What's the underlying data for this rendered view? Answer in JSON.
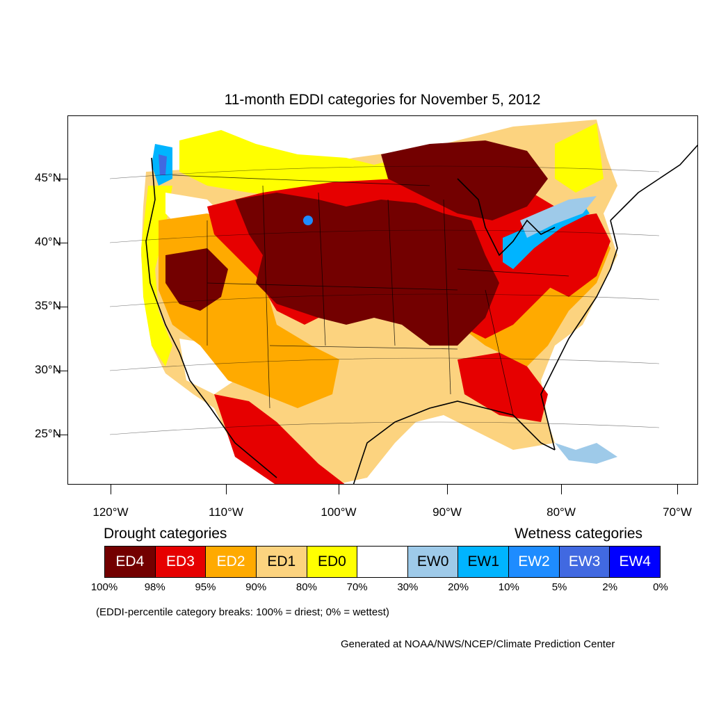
{
  "title": "11-month EDDI categories for November 5, 2012",
  "lat_labels": [
    "45°N",
    "40°N",
    "35°N",
    "30°N",
    "25°N"
  ],
  "lon_labels": [
    "120°W",
    "110°W",
    "100°W",
    "90°W",
    "80°W",
    "70°W"
  ],
  "legend": {
    "drought_heading": "Drought categories",
    "wetness_heading": "Wetness categories",
    "categories": [
      {
        "label": "ED4",
        "color": "#730000",
        "text_color": "#ffffff"
      },
      {
        "label": "ED3",
        "color": "#e60000",
        "text_color": "#ffffff"
      },
      {
        "label": "ED2",
        "color": "#ffaa00",
        "text_color": "#ffffff"
      },
      {
        "label": "ED1",
        "color": "#fcd37f",
        "text_color": "#000000"
      },
      {
        "label": "ED0",
        "color": "#ffff00",
        "text_color": "#000000"
      },
      {
        "label": "",
        "color": "#ffffff",
        "text_color": "#000000"
      },
      {
        "label": "EW0",
        "color": "#9ecae9",
        "text_color": "#000000"
      },
      {
        "label": "EW1",
        "color": "#00b4ff",
        "text_color": "#000000"
      },
      {
        "label": "EW2",
        "color": "#1e8cff",
        "text_color": "#ffffff"
      },
      {
        "label": "EW3",
        "color": "#4169e1",
        "text_color": "#ffffff"
      },
      {
        "label": "EW4",
        "color": "#0000ff",
        "text_color": "#ffffff"
      }
    ],
    "breaks": [
      "100%",
      "98%",
      "95%",
      "90%",
      "80%",
      "70%",
      "30%",
      "20%",
      "10%",
      "5%",
      "2%",
      "0%"
    ]
  },
  "note": "(EDDI-percentile category breaks: 100% = driest; 0% = wettest)",
  "credit": "Generated at NOAA/NWS/NCEP/Climate Prediction Center"
}
